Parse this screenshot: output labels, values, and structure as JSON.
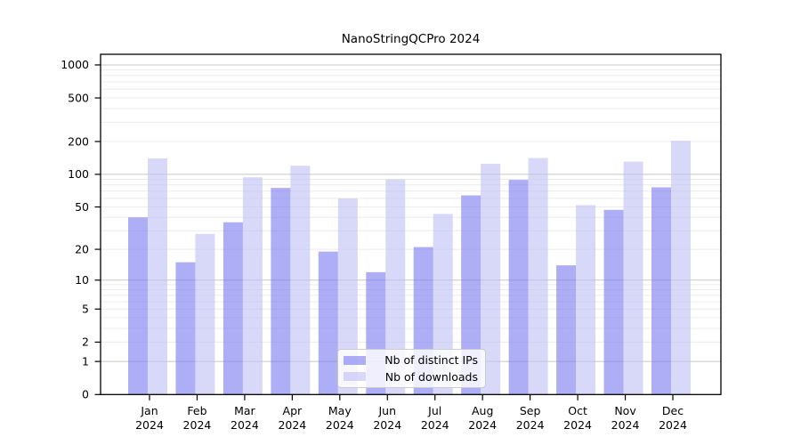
{
  "chart_data": {
    "type": "bar",
    "title": "NanoStringQCPro 2024",
    "xlabel": "",
    "ylabel": "",
    "year_label": "2024",
    "categories": [
      "Jan",
      "Feb",
      "Mar",
      "Apr",
      "May",
      "Jun",
      "Jul",
      "Aug",
      "Sep",
      "Oct",
      "Nov",
      "Dec"
    ],
    "series": [
      {
        "name": "Nb of distinct IPs",
        "color": "rgba(124,124,240,0.62)",
        "values": [
          40,
          15,
          36,
          75,
          19,
          12,
          21,
          64,
          89,
          14,
          47,
          76
        ]
      },
      {
        "name": "Nb of downloads",
        "color": "rgba(192,192,246,0.62)",
        "values": [
          140,
          28,
          94,
          120,
          60,
          90,
          43,
          125,
          141,
          52,
          131,
          203
        ]
      }
    ],
    "y_ticks": [
      0,
      1,
      2,
      5,
      10,
      20,
      50,
      100,
      200,
      500,
      1000
    ],
    "y_scale": "log10(1+x)",
    "ylim": [
      0,
      1100
    ],
    "grid": true,
    "major_grid_values": [
      1,
      10,
      100,
      1000
    ],
    "legend_position": "bottom-center",
    "colors": {
      "major_grid": "#c8c8c8",
      "minor_grid": "#ececec",
      "axis": "#000000",
      "text": "#000000"
    }
  }
}
